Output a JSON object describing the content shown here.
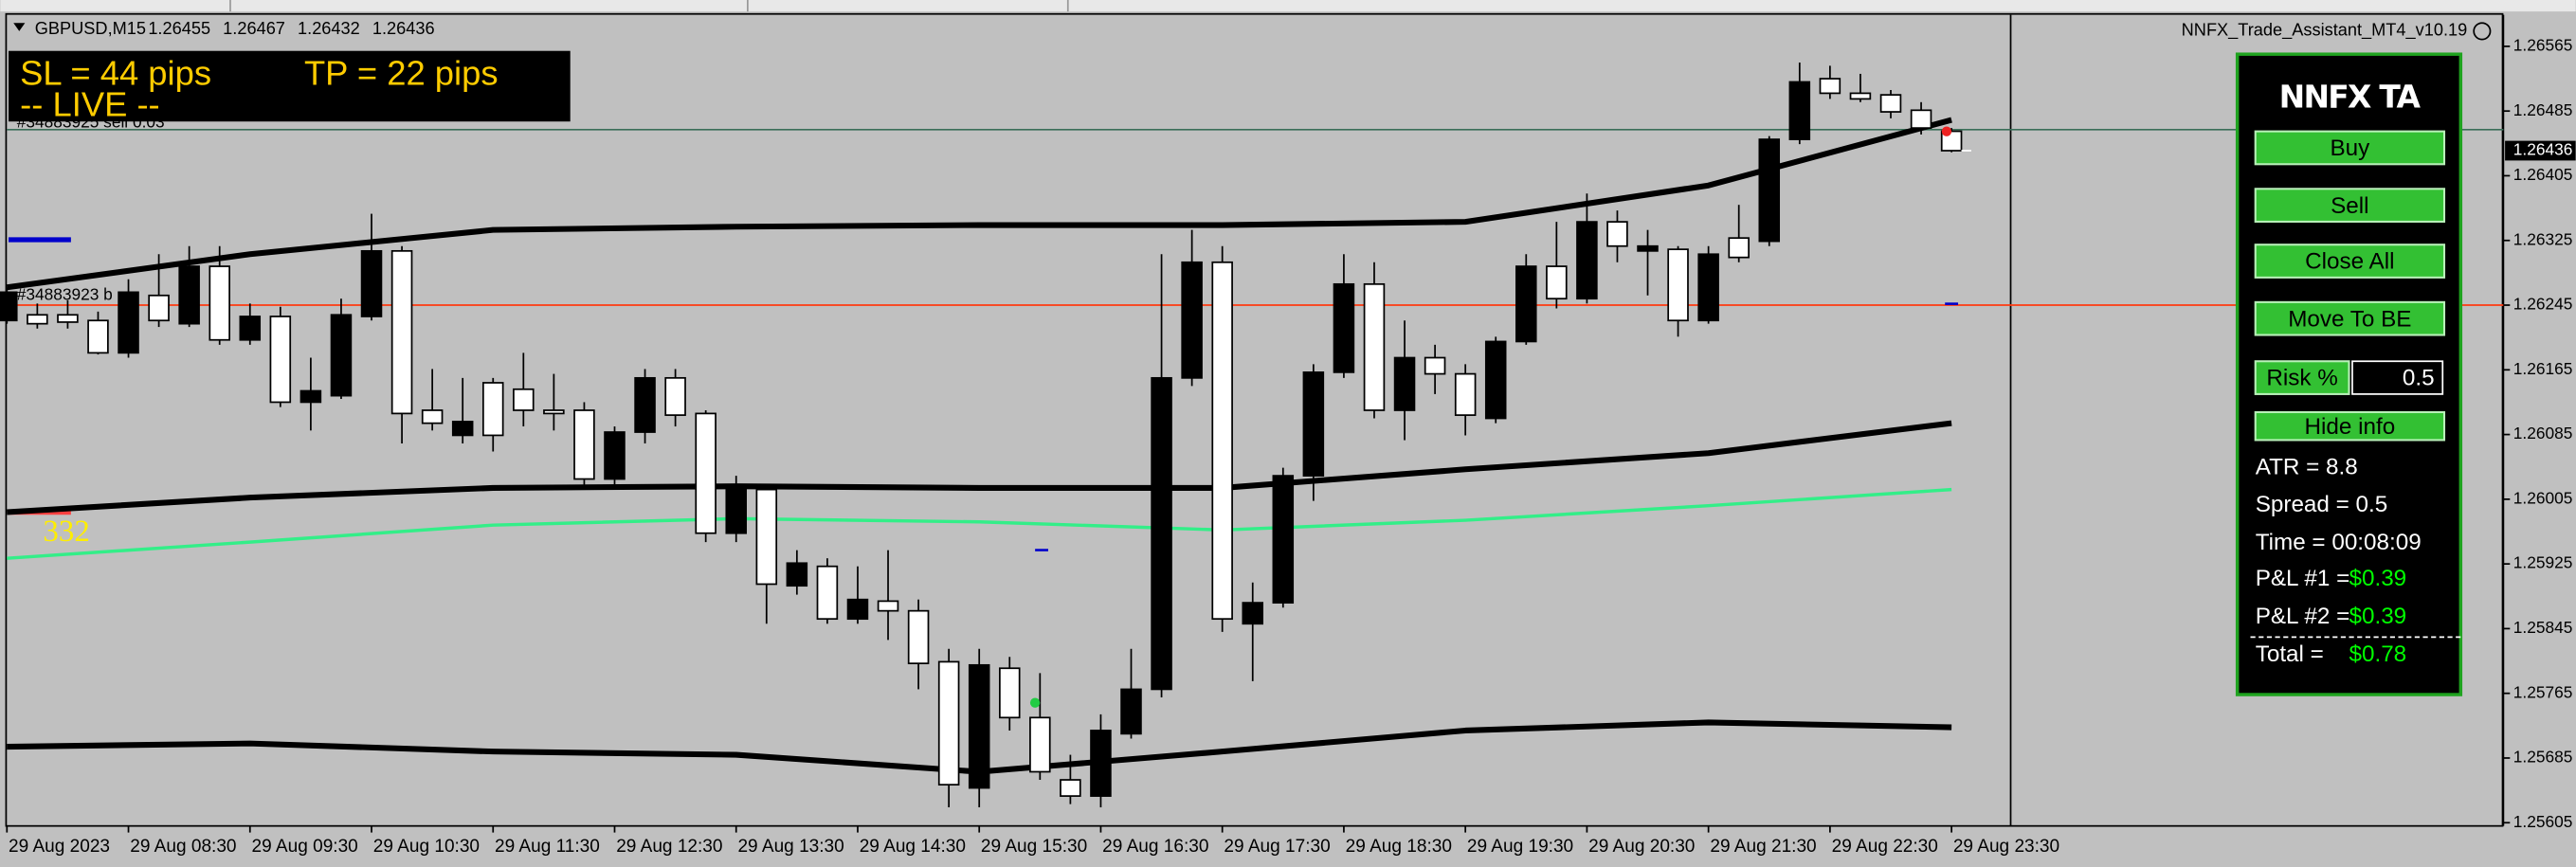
{
  "header": {
    "symbol": "GBPUSD,M15",
    "ohlc": [
      1.26455,
      1.26467,
      1.26432,
      1.26436
    ],
    "indicator": "NNFX_Trade_Assistant_MT4_v10.19"
  },
  "info_box": {
    "sl": "SL = 44 pips",
    "tp": "TP = 22 pips",
    "status": "-- LIVE --"
  },
  "trade_labels": [
    "#34883925 sell 0.03",
    "#34883923 b"
  ],
  "marker_text": "332",
  "panel": {
    "title": "NNFX TA",
    "buttons": [
      "Buy",
      "Sell",
      "Close All",
      "Move To BE"
    ],
    "risk_label": "Risk %",
    "risk_value": "0.5",
    "hide": "Hide info",
    "info": [
      "ATR = 8.8",
      "Spread = 0.5",
      "Time = 00:08:09"
    ],
    "pnl": [
      {
        "label": "P&L #1 =",
        "value": "$0.39"
      },
      {
        "label": "P&L #2 =",
        "value": "$0.39"
      },
      {
        "label": "Total =",
        "value": "$0.78"
      }
    ]
  },
  "chart_data": {
    "type": "candlestick",
    "categories": [
      "29 Aug 2023",
      null,
      null,
      null,
      "29 Aug 08:30",
      null,
      null,
      null,
      "29 Aug 09:30",
      null,
      null,
      null,
      "29 Aug 10:30",
      null,
      null,
      null,
      "29 Aug 11:30",
      null,
      null,
      null,
      "29 Aug 12:30",
      null,
      null,
      null,
      "29 Aug 13:30",
      null,
      null,
      null,
      "29 Aug 14:30",
      null,
      null,
      null,
      "29 Aug 15:30",
      null,
      null,
      null,
      "29 Aug 16:30",
      null,
      null,
      null,
      "29 Aug 17:30",
      null,
      null,
      null,
      "29 Aug 18:30",
      null,
      null,
      null,
      "29 Aug 19:30",
      null,
      null,
      null,
      "29 Aug 20:30",
      null,
      null,
      null,
      "29 Aug 21:30",
      null,
      null,
      null,
      "29 Aug 22:30",
      null,
      null,
      null,
      "29 Aug 23:30"
    ],
    "open": [
      1.26226,
      1.26233,
      1.26233,
      1.26226,
      1.26186,
      1.26257,
      1.26222,
      1.26293,
      1.26202,
      1.26231,
      1.26125,
      1.26133,
      1.26231,
      1.26312,
      1.26115,
      1.26084,
      1.26149,
      1.26141,
      1.26115,
      1.26115,
      1.2603,
      1.26088,
      1.26155,
      1.26111,
      1.25963,
      1.26017,
      1.25898,
      1.25922,
      1.25857,
      1.25879,
      1.25867,
      1.25804,
      1.25648,
      1.25796,
      1.25735,
      1.25658,
      1.25638,
      1.25715,
      1.2577,
      1.26155,
      1.26298,
      1.25851,
      1.25877,
      1.26034,
      1.26162,
      1.26271,
      1.26115,
      1.2618,
      1.2616,
      1.26105,
      1.262,
      1.26293,
      1.26253,
      1.26348,
      1.26312,
      1.26314,
      1.26226,
      1.26328,
      1.26324,
      1.2645,
      1.26525,
      1.26507,
      1.26505,
      1.26486,
      1.2646
    ],
    "high": [
      1.26267,
      1.26247,
      1.26251,
      1.26237,
      1.26277,
      1.26308,
      1.26318,
      1.26318,
      1.26247,
      1.26243,
      1.2618,
      1.26253,
      1.26358,
      1.26318,
      1.26166,
      1.26155,
      1.26155,
      1.26186,
      1.2616,
      1.26125,
      1.26095,
      1.26166,
      1.26166,
      1.26115,
      1.26034,
      1.26023,
      1.25942,
      1.25932,
      1.25922,
      1.25942,
      1.25881,
      1.2582,
      1.2582,
      1.2581,
      1.2579,
      1.25689,
      1.25739,
      1.2582,
      1.26308,
      1.26338,
      1.26318,
      1.25902,
      1.26044,
      1.26172,
      1.26308,
      1.26298,
      1.26226,
      1.26196,
      1.26172,
      1.26206,
      1.26308,
      1.26348,
      1.26383,
      1.26362,
      1.26338,
      1.26318,
      1.26318,
      1.26369,
      1.26454,
      1.26545,
      1.26541,
      1.26531,
      1.26511,
      1.26496,
      1.26464
    ],
    "low": [
      1.26222,
      1.26216,
      1.26216,
      1.26184,
      1.2618,
      1.26218,
      1.26218,
      1.26196,
      1.26196,
      1.26119,
      1.2609,
      1.26129,
      1.26226,
      1.26074,
      1.2609,
      1.26074,
      1.26064,
      1.26095,
      1.2609,
      1.26019,
      1.26023,
      1.26074,
      1.26095,
      1.25952,
      1.25952,
      1.25851,
      1.25887,
      1.25851,
      1.25851,
      1.25831,
      1.2577,
      1.25624,
      1.25624,
      1.25719,
      1.25658,
      1.25628,
      1.25624,
      1.25709,
      1.2576,
      1.26145,
      1.25841,
      1.2578,
      1.25871,
      1.26003,
      1.26155,
      1.26105,
      1.26078,
      1.26135,
      1.26084,
      1.26099,
      1.26196,
      1.26241,
      1.26247,
      1.26298,
      1.26257,
      1.26206,
      1.26222,
      1.26298,
      1.26318,
      1.26444,
      1.265,
      1.26496,
      1.26476,
      1.26456,
      1.26434
    ],
    "close": [
      1.26261,
      1.26222,
      1.26224,
      1.26186,
      1.26261,
      1.26226,
      1.26293,
      1.26202,
      1.26231,
      1.26125,
      1.26139,
      1.26233,
      1.26312,
      1.26111,
      1.26099,
      1.26101,
      1.26084,
      1.26115,
      1.26111,
      1.2603,
      1.26088,
      1.26155,
      1.26109,
      1.25963,
      1.26017,
      1.259,
      1.25926,
      1.25857,
      1.25881,
      1.25867,
      1.25802,
      1.25652,
      1.258,
      1.25735,
      1.25668,
      1.25638,
      1.25719,
      1.2577,
      1.26155,
      1.26298,
      1.25857,
      1.25877,
      1.26034,
      1.26162,
      1.26271,
      1.26115,
      1.2618,
      1.2616,
      1.26109,
      1.262,
      1.26293,
      1.26253,
      1.26348,
      1.26318,
      1.26318,
      1.26226,
      1.26308,
      1.26304,
      1.2645,
      1.26521,
      1.26507,
      1.265,
      1.26484,
      1.26464,
      1.26436
    ],
    "colors": {
      "up": "#000000",
      "down": "#ffffff"
    },
    "ylim": [
      1.25601,
      1.26602
    ],
    "yticks": [
      1.26565,
      1.26485,
      1.26405,
      1.26325,
      1.26245,
      1.26165,
      1.26085,
      1.26005,
      1.25925,
      1.25845,
      1.25765,
      1.25685,
      1.25605
    ],
    "overlays": [
      {
        "color": "#000000",
        "x": [
          0,
          8,
          16,
          24,
          32,
          40,
          48,
          56,
          64
        ],
        "values": [
          1.26267,
          1.26308,
          1.26338,
          1.26342,
          1.26344,
          1.26344,
          1.26348,
          1.26393,
          1.26474
        ]
      },
      {
        "color": "#000000",
        "x": [
          0,
          8,
          16,
          24,
          32,
          40,
          48,
          56,
          64
        ],
        "values": [
          1.25989,
          1.26007,
          1.26019,
          1.26021,
          1.26019,
          1.26019,
          1.26042,
          1.26062,
          1.26099
        ]
      },
      {
        "color": "#33ee88",
        "x": [
          0,
          8,
          16,
          24,
          32,
          40,
          48,
          56,
          64
        ],
        "values": [
          1.25932,
          1.25952,
          1.25973,
          1.25981,
          1.25977,
          1.25967,
          1.25979,
          1.25997,
          1.26017
        ]
      },
      {
        "color": "#000000",
        "x": [
          0,
          8,
          16,
          24,
          32,
          40,
          48,
          56,
          64
        ],
        "values": [
          1.25699,
          1.25703,
          1.25693,
          1.25689,
          1.25668,
          1.25693,
          1.25719,
          1.25729,
          1.25723
        ]
      }
    ],
    "hlines": [
      {
        "value": 1.26462,
        "color": "#3a6e58"
      },
      {
        "value": 1.26245,
        "color": "#ff3a10"
      }
    ]
  }
}
